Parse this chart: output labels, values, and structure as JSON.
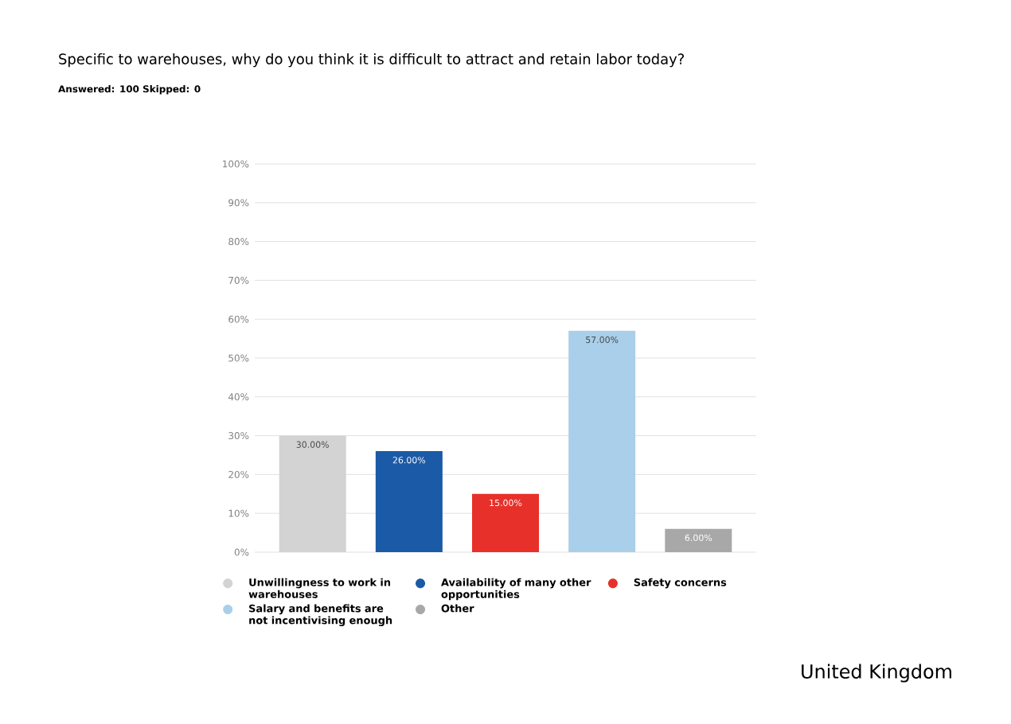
{
  "chart_data": {
    "type": "bar",
    "title": "Specific to warehouses, why do you think it is difficult to attract and retain labor today?",
    "subtitle": "Answered: 100    Skipped: 0",
    "categories": [
      null,
      null,
      null,
      null,
      null
    ],
    "series": [
      {
        "name": "Unwillingness to work in warehouses",
        "color": "#d3d3d3",
        "values": [
          30,
          null,
          null,
          null,
          null
        ],
        "value_labels": [
          "30.00%",
          null,
          null,
          null,
          null
        ]
      },
      {
        "name": "Availability of many other opportunities",
        "color": "#1a5aa6",
        "values": [
          null,
          26,
          null,
          null,
          null
        ],
        "value_labels": [
          null,
          "26.00%",
          null,
          null,
          null
        ]
      },
      {
        "name": "Safety concerns",
        "color": "#e8302a",
        "values": [
          null,
          null,
          15,
          null,
          null
        ],
        "value_labels": [
          null,
          null,
          "15.00%",
          null,
          null
        ]
      },
      {
        "name": "Salary and benefits are not incentivising enough",
        "color": "#a9cfea",
        "values": [
          null,
          null,
          null,
          57,
          null
        ],
        "value_labels": [
          null,
          null,
          null,
          "57.00%",
          null
        ]
      },
      {
        "name": "Other",
        "color": "#a8a8a8",
        "values": [
          null,
          null,
          null,
          null,
          6
        ],
        "value_labels": [
          null,
          null,
          null,
          null,
          "6.00%"
        ]
      }
    ],
    "ylim": [
      0,
      100
    ],
    "yticks": [
      {
        "value": 0,
        "label": "0%"
      },
      {
        "value": 10,
        "label": "10%"
      },
      {
        "value": 20,
        "label": "20%"
      },
      {
        "value": 30,
        "label": "30%"
      },
      {
        "value": 40,
        "label": "40%"
      },
      {
        "value": 50,
        "label": "50%"
      },
      {
        "value": 60,
        "label": "60%"
      },
      {
        "value": 70,
        "label": "70%"
      },
      {
        "value": 80,
        "label": "80%"
      },
      {
        "value": 90,
        "label": "90%"
      },
      {
        "value": 100,
        "label": "100%"
      }
    ],
    "grid": "y",
    "legend": "bottom",
    "tick_labels": "y",
    "annotations": [
      "United Kingdom"
    ]
  }
}
